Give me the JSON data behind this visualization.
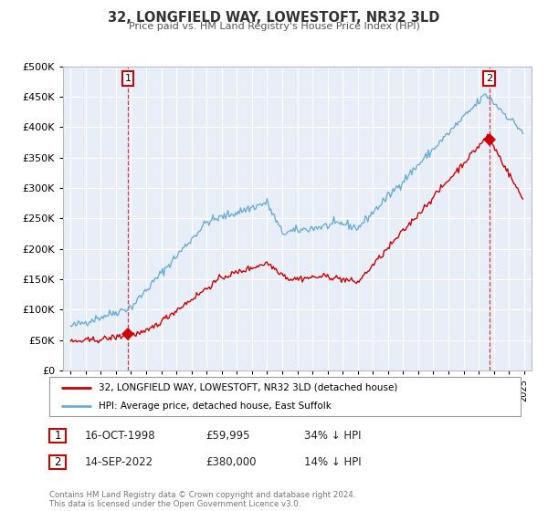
{
  "title": "32, LONGFIELD WAY, LOWESTOFT, NR32 3LD",
  "subtitle": "Price paid vs. HM Land Registry's House Price Index (HPI)",
  "legend_line1": "32, LONGFIELD WAY, LOWESTOFT, NR32 3LD (detached house)",
  "legend_line2": "HPI: Average price, detached house, East Suffolk",
  "transaction1_date": "16-OCT-1998",
  "transaction1_price": "£59,995",
  "transaction1_hpi": "34% ↓ HPI",
  "transaction2_date": "14-SEP-2022",
  "transaction2_price": "£380,000",
  "transaction2_hpi": "14% ↓ HPI",
  "footer": "Contains HM Land Registry data © Crown copyright and database right 2024.\nThis data is licensed under the Open Government Licence v3.0.",
  "hpi_color": "#6baed6",
  "price_color": "#cc0000",
  "vline_color": "#cc0000",
  "point1_x": 1998.79,
  "point1_y": 59995,
  "point2_x": 2022.71,
  "point2_y": 380000,
  "xlim_left": 1994.5,
  "xlim_right": 2025.5,
  "ylim_bottom": 0,
  "ylim_top": 500000,
  "yticks": [
    0,
    50000,
    100000,
    150000,
    200000,
    250000,
    300000,
    350000,
    400000,
    450000,
    500000
  ],
  "chart_bg": "#e8eef8",
  "fig_bg": "#ffffff"
}
